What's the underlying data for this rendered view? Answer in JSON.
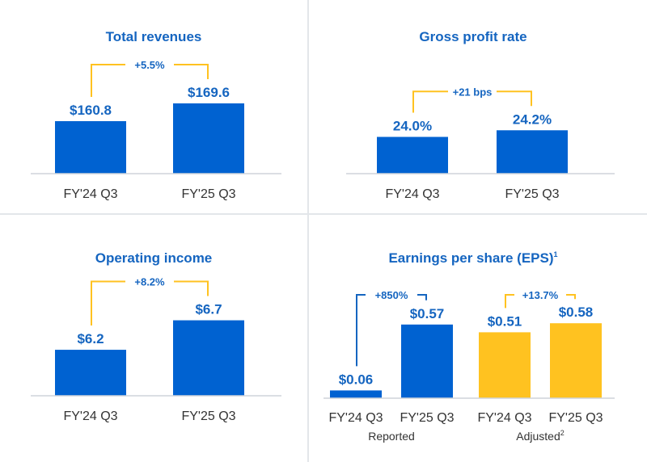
{
  "colors": {
    "blue": "#0062d1",
    "yellow": "#ffc220",
    "title": "#1565c0",
    "bracket": "#ffc220",
    "bracket_eps_reported": "#1565c0",
    "axis": "#cfd4da",
    "divider": "#e3e6ea"
  },
  "chart_data": [
    {
      "type": "bar",
      "title": "Total revenues",
      "categories": [
        "FY'24 Q3",
        "FY'25 Q3"
      ],
      "values": [
        160.8,
        169.6
      ],
      "value_labels": [
        "$160.8",
        "$169.6"
      ],
      "change_label": "+5.5%"
    },
    {
      "type": "bar",
      "title": "Gross profit rate",
      "categories": [
        "FY'24 Q3",
        "FY'25 Q3"
      ],
      "values": [
        24.0,
        24.2
      ],
      "value_labels": [
        "24.0%",
        "24.2%"
      ],
      "change_label": "+21 bps"
    },
    {
      "type": "bar",
      "title": "Operating income",
      "categories": [
        "FY'24 Q3",
        "FY'25 Q3"
      ],
      "values": [
        6.2,
        6.7
      ],
      "value_labels": [
        "$6.2",
        "$6.7"
      ],
      "change_label": "+8.2%"
    },
    {
      "type": "bar",
      "title": "Earnings per share (EPS)",
      "title_superscript": "1",
      "categories": [
        "FY'24 Q3",
        "FY'25 Q3",
        "FY'24 Q3",
        "FY'25 Q3"
      ],
      "groups": [
        {
          "label": "Reported",
          "superscript": "",
          "values": [
            0.06,
            0.57
          ],
          "value_labels": [
            "$0.06",
            "$0.57"
          ],
          "change_label": "+850%"
        },
        {
          "label": "Adjusted",
          "superscript": "2",
          "values": [
            0.51,
            0.58
          ],
          "value_labels": [
            "$0.51",
            "$0.58"
          ],
          "change_label": "+13.7%"
        }
      ]
    }
  ]
}
